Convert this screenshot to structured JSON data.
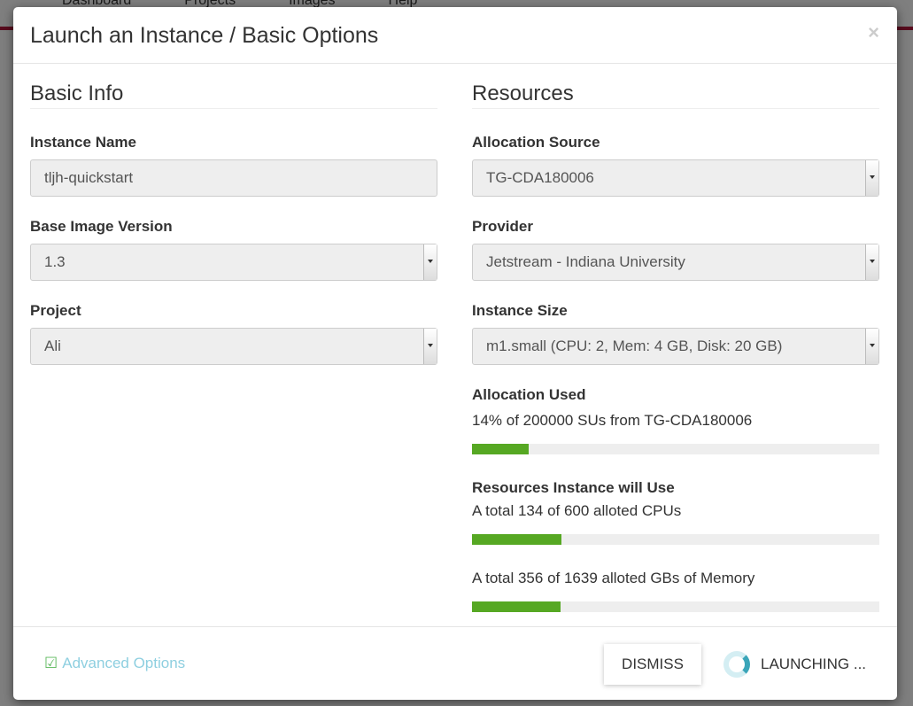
{
  "background": {
    "nav": [
      "Dashboard",
      "Projects",
      "Images",
      "Help"
    ]
  },
  "modal": {
    "title": "Launch an Instance / Basic Options",
    "close": "×"
  },
  "basic_info": {
    "heading": "Basic Info",
    "instance_name_label": "Instance Name",
    "instance_name_value": "tljh-quickstart",
    "base_image_label": "Base Image Version",
    "base_image_value": "1.3",
    "project_label": "Project",
    "project_value": "Ali"
  },
  "resources": {
    "heading": "Resources",
    "allocation_source_label": "Allocation Source",
    "allocation_source_value": "TG-CDA180006",
    "provider_label": "Provider",
    "provider_value": "Jetstream - Indiana University",
    "instance_size_label": "Instance Size",
    "instance_size_value": "m1.small (CPU: 2, Mem: 4 GB, Disk: 20 GB)",
    "allocation_used_label": "Allocation Used",
    "allocation_used_text": "14% of 200000 SUs from TG-CDA180006",
    "allocation_used_percent": 14,
    "will_use_label": "Resources Instance will Use",
    "cpu_text": "A total 134 of 600 alloted CPUs",
    "cpu_percent": 22,
    "mem_text": "A total 356 of 1639 alloted GBs of Memory",
    "mem_percent": 21.7
  },
  "footer": {
    "advanced": "Advanced Options",
    "dismiss": "DISMISS",
    "launching": "LAUNCHING ..."
  },
  "colors": {
    "progress": "#56a823",
    "accent": "#3aa5b9"
  }
}
